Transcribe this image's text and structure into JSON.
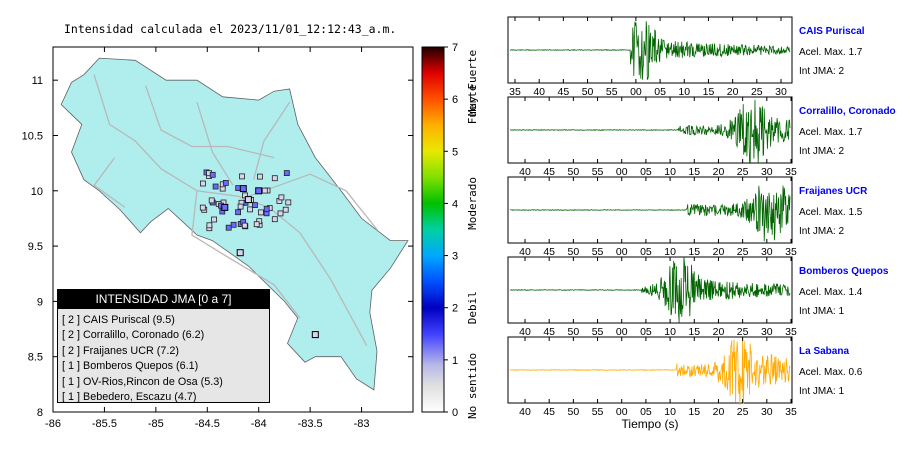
{
  "map": {
    "title": "Intensidad calculada el 2023/11/01_12:12:43_a.m.",
    "xticks": [
      "-86",
      "-85.5",
      "-85",
      "-84.5",
      "-84",
      "-83.5",
      "-83"
    ],
    "yticks": [
      "11",
      "10.5",
      "10",
      "9.5",
      "9",
      "8.5",
      "8"
    ],
    "legend_title": "INTENSIDAD JMA [0 a 7]",
    "legend_items": [
      "[ 2 ]  CAIS Puriscal (9.5)",
      "[ 2 ]  Corralillo, Coronado (6.2)",
      "[ 2 ]  Fraijanes UCR (7.2)",
      "[ 1 ]  Bomberos Quepos (6.1)",
      "[ 1 ]  OV-Rios,Rincon de Osa (5.3)",
      "[ 1 ]  Bebedero, Escazu (4.7)"
    ],
    "colors": {
      "land": "#b0eeee",
      "roads": "#b8b8b8",
      "marker_low": "#d7d7ea",
      "marker_high": "#6a6aff"
    }
  },
  "colorbar": {
    "ticks": [
      "0",
      "1",
      "2",
      "3",
      "4",
      "5",
      "6",
      "7"
    ],
    "categories": [
      "No sentido",
      "Debil",
      "Moderado",
      "Fuerte",
      "Muy Fuerte"
    ]
  },
  "traces": [
    {
      "station": "CAIS Puriscal",
      "acel": "Acel. Max. 1.7",
      "int": "Int JMA: 2",
      "color": "#006400",
      "onset": 0.43,
      "peak": 0.47,
      "amp": 0.95,
      "tail": 0.3,
      "xticks": [
        "35",
        "40",
        "45",
        "50",
        "55",
        "00",
        "05",
        "10",
        "15",
        "20",
        "25",
        "30"
      ]
    },
    {
      "station": "Corralillo, Coronado",
      "acel": "Acel. Max. 1.7",
      "int": "Int JMA: 2",
      "color": "#006400",
      "onset": 0.6,
      "peak": 0.87,
      "amp": 1.0,
      "tail": 0.45,
      "xticks": [
        "40",
        "45",
        "50",
        "55",
        "00",
        "05",
        "10",
        "15",
        "20",
        "25",
        "30",
        "35"
      ]
    },
    {
      "station": "Fraijanes UCR",
      "acel": "Acel. Max. 1.5",
      "int": "Int JMA: 2",
      "color": "#006400",
      "onset": 0.63,
      "peak": 0.93,
      "amp": 1.0,
      "tail": 0.55,
      "xticks": [
        "40",
        "45",
        "50",
        "55",
        "00",
        "05",
        "10",
        "15",
        "20",
        "25",
        "30",
        "35"
      ]
    },
    {
      "station": "Bomberos Quepos",
      "acel": "Acel. Max. 1.4",
      "int": "Int JMA: 1",
      "color": "#006400",
      "onset": 0.47,
      "peak": 0.61,
      "amp": 1.0,
      "tail": 0.35,
      "xticks": [
        "40",
        "45",
        "50",
        "55",
        "00",
        "05",
        "10",
        "15",
        "20",
        "25",
        "30",
        "35"
      ]
    },
    {
      "station": "La Sabana",
      "acel": "Acel. Max. 0.6",
      "int": "Int JMA: 1",
      "color": "#ffaa00",
      "onset": 0.59,
      "peak": 0.82,
      "amp": 0.95,
      "tail": 0.6,
      "xticks": [
        "40",
        "45",
        "50",
        "55",
        "00",
        "05",
        "10",
        "15",
        "20",
        "25",
        "30",
        "35"
      ]
    }
  ],
  "xlabel": "Tiempo (s)",
  "chart_data": {
    "type": "scatter",
    "xlim": [
      -86,
      -82.5
    ],
    "ylim": [
      8,
      11.3
    ],
    "stations": [
      {
        "x": -84.33,
        "y": 9.85,
        "intensity": 2,
        "name": "CAIS Puriscal"
      },
      {
        "x": -84.0,
        "y": 10.0,
        "intensity": 2,
        "name": "Corralillo, Coronado"
      },
      {
        "x": -84.15,
        "y": 10.02,
        "intensity": 2,
        "name": "Fraijanes UCR"
      },
      {
        "x": -84.18,
        "y": 9.44,
        "intensity": 1,
        "name": "Bomberos Quepos"
      },
      {
        "x": -83.45,
        "y": 8.7,
        "intensity": 1,
        "name": "OV-Rios,Rincon de Osa"
      },
      {
        "x": -84.1,
        "y": 9.92,
        "intensity": 1,
        "name": "Bebedero, Escazu"
      }
    ]
  }
}
